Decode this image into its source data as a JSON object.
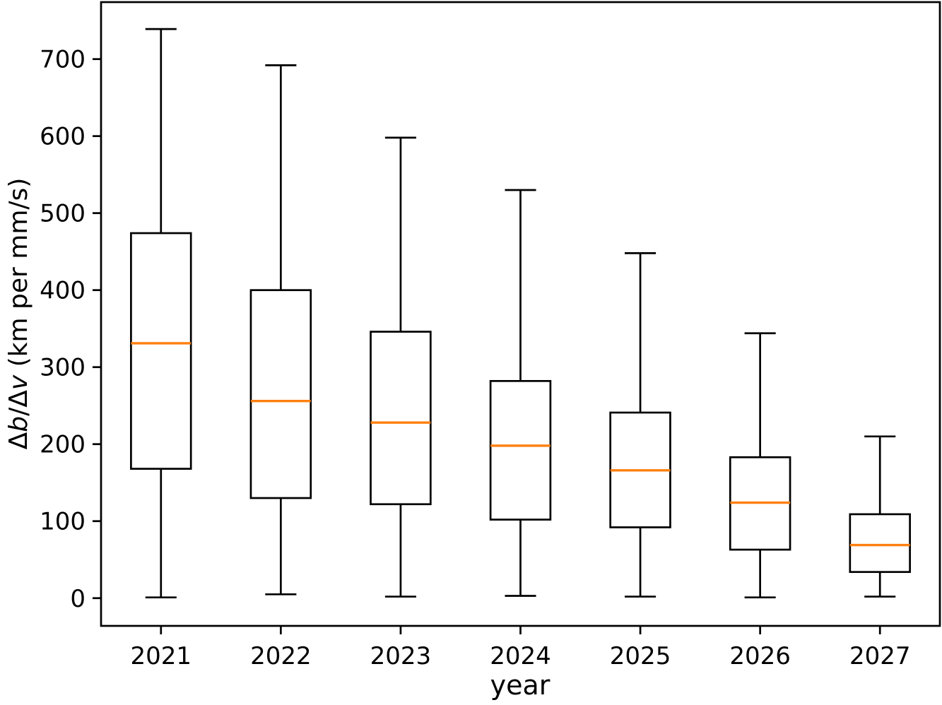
{
  "figure": {
    "background": "#ffffff"
  },
  "chart_data": {
    "type": "boxplot",
    "title": "",
    "xlabel": "year",
    "ylabel": "Δb/Δv (km per mm/s)",
    "ylabel_parts": [
      {
        "t": "Δ",
        "italic": false
      },
      {
        "t": "b",
        "italic": true
      },
      {
        "t": "/Δ",
        "italic": false
      },
      {
        "t": "v",
        "italic": true
      },
      {
        "t": " (km per mm/s)",
        "italic": false
      }
    ],
    "categories": [
      "2021",
      "2022",
      "2023",
      "2024",
      "2025",
      "2026",
      "2027"
    ],
    "boxes": [
      {
        "label": "2021",
        "whislo": 1,
        "q1": 168,
        "med": 331,
        "q3": 474,
        "whishi": 739
      },
      {
        "label": "2022",
        "whislo": 5,
        "q1": 130,
        "med": 256,
        "q3": 400,
        "whishi": 692
      },
      {
        "label": "2023",
        "whislo": 2,
        "q1": 122,
        "med": 228,
        "q3": 346,
        "whishi": 598
      },
      {
        "label": "2024",
        "whislo": 3,
        "q1": 102,
        "med": 198,
        "q3": 282,
        "whishi": 530
      },
      {
        "label": "2025",
        "whislo": 2,
        "q1": 92,
        "med": 166,
        "q3": 241,
        "whishi": 448
      },
      {
        "label": "2026",
        "whislo": 1,
        "q1": 63,
        "med": 124,
        "q3": 183,
        "whishi": 344
      },
      {
        "label": "2027",
        "whislo": 2,
        "q1": 34,
        "med": 69,
        "q3": 109,
        "whishi": 210
      }
    ],
    "yticks": [
      0,
      100,
      200,
      300,
      400,
      500,
      600,
      700
    ],
    "ytick_labels": [
      "0",
      "100",
      "200",
      "300",
      "400",
      "500",
      "600",
      "700"
    ],
    "ylim": [
      -36,
      774
    ],
    "grid": false,
    "legend": null,
    "colors": {
      "median": "#ff7f0e",
      "line": "#000000",
      "box_fill": "none",
      "background": "#ffffff"
    }
  }
}
